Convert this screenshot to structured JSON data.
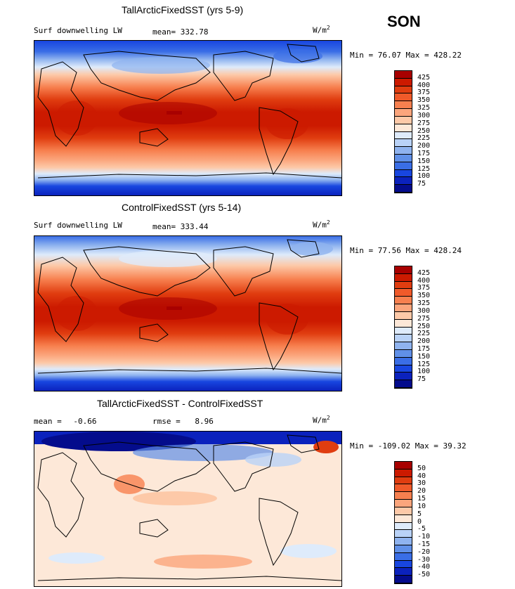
{
  "season": "SON",
  "units_base": "W/m",
  "units_exp": "2",
  "panels": [
    {
      "title": "TallArcticFixedSST (yrs 5-9)",
      "left_label": "Surf downwelling LW",
      "stat1_label": "mean=",
      "stat1_value": "332.78",
      "minmax": "Min =  76.07 Max = 428.22"
    },
    {
      "title": "ControlFixedSST (yrs 5-14)",
      "left_label": "Surf downwelling LW",
      "stat1_label": "mean=",
      "stat1_value": "333.44",
      "minmax": "Min =  77.56 Max = 428.24"
    },
    {
      "title": "TallArcticFixedSST - ControlFixedSST",
      "left_label": "mean =",
      "left_value": "-0.66",
      "stat1_label": "rmse =",
      "stat1_value": "8.96",
      "minmax": "Min = -109.02 Max =  39.32"
    }
  ],
  "colorbar_abs": {
    "levels": [
      "425",
      "400",
      "375",
      "350",
      "325",
      "300",
      "275",
      "250",
      "225",
      "200",
      "175",
      "150",
      "125",
      "100",
      "75"
    ],
    "colors": [
      "#a80000",
      "#cc1a00",
      "#e03d10",
      "#f05a2a",
      "#f7804f",
      "#fba57c",
      "#fdc9a8",
      "#fde8d8",
      "#deebfb",
      "#b9d2f7",
      "#8fb3ef",
      "#6090e8",
      "#3a6ee6",
      "#1846e0",
      "#0b22bd",
      "#040c8c"
    ]
  },
  "colorbar_diff": {
    "levels": [
      "50",
      "40",
      "30",
      "20",
      "15",
      "10",
      "5",
      "0",
      "-5",
      "-10",
      "-15",
      "-20",
      "-30",
      "-40",
      "-50"
    ],
    "colors": [
      "#a80000",
      "#cc1a00",
      "#e03d10",
      "#f05a2a",
      "#f7804f",
      "#fba57c",
      "#fdc9a8",
      "#fde8d8",
      "#deebfb",
      "#b9d2f7",
      "#8fb3ef",
      "#6090e8",
      "#3a6ee6",
      "#1846e0",
      "#0b22bd",
      "#040c8c"
    ]
  },
  "chart_data": [
    {
      "type": "heatmap",
      "title": "TallArcticFixedSST (yrs 5-9)",
      "variable": "Surf downwelling LW",
      "units": "W/m2",
      "mean": 332.78,
      "min": 76.07,
      "max": 428.22,
      "contour_levels": [
        75,
        100,
        125,
        150,
        175,
        200,
        225,
        250,
        275,
        300,
        325,
        350,
        375,
        400,
        425
      ]
    },
    {
      "type": "heatmap",
      "title": "ControlFixedSST (yrs 5-14)",
      "variable": "Surf downwelling LW",
      "units": "W/m2",
      "mean": 333.44,
      "min": 77.56,
      "max": 428.24,
      "contour_levels": [
        75,
        100,
        125,
        150,
        175,
        200,
        225,
        250,
        275,
        300,
        325,
        350,
        375,
        400,
        425
      ]
    },
    {
      "type": "heatmap",
      "title": "TallArcticFixedSST - ControlFixedSST",
      "units": "W/m2",
      "mean": -0.66,
      "rmse": 8.96,
      "min": -109.02,
      "max": 39.32,
      "contour_levels": [
        -50,
        -40,
        -30,
        -20,
        -15,
        -10,
        -5,
        0,
        5,
        10,
        15,
        20,
        30,
        40,
        50
      ]
    }
  ]
}
